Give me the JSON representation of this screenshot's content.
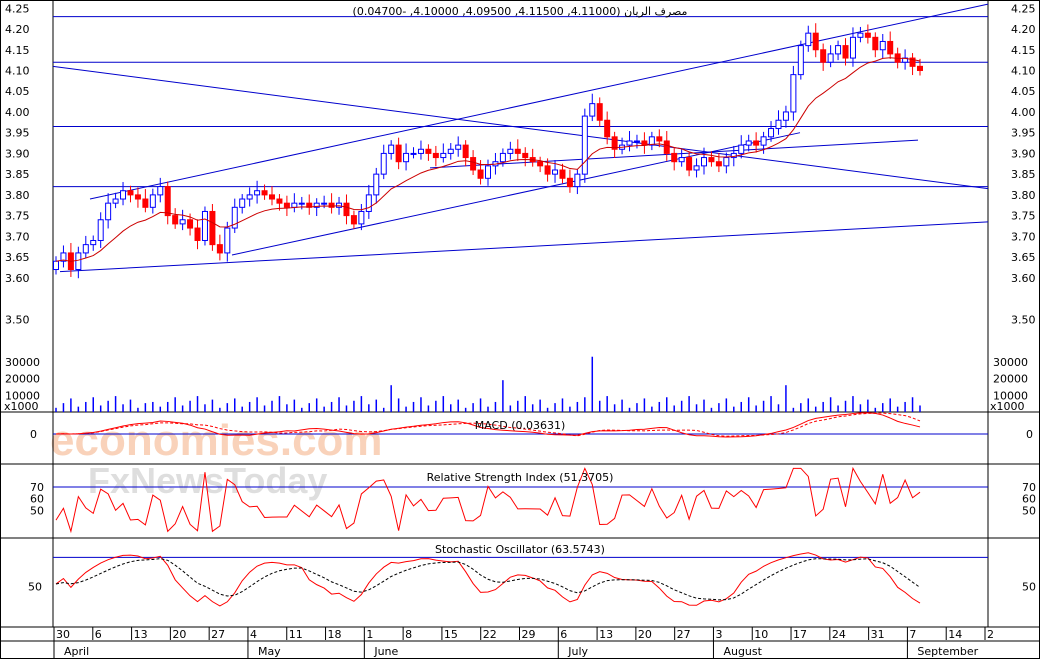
{
  "colors": {
    "up": "#0000ff",
    "down": "#ff0000",
    "ma": "#cc0000",
    "trend": "#0000cc",
    "grid": "#000000",
    "watermark_orange": "#f5b48a",
    "watermark_gray": "#d0d0d0"
  },
  "header": {
    "title": "مصرف الريان (4.11000, 4.11500, 4.09500, 4.10000, -0.04700)"
  },
  "watermark": {
    "line1": "economies.com",
    "line2": "FxNewsToday"
  },
  "panels": {
    "volume_unit": "x1000",
    "macd_title": "MACD (0.03631)",
    "rsi_title": "Relative Strength Index (51.3705)",
    "stoch_title": "Stochastic Oscillator (63.5743)"
  },
  "chart_data": [
    {
      "type": "candlestick",
      "name": "price",
      "ylim": [
        3.45,
        4.27
      ],
      "y_ticks": [
        "4.25",
        "4.20",
        "4.15",
        "4.10",
        "4.05",
        "4.00",
        "3.95",
        "3.90",
        "3.85",
        "3.80",
        "3.75",
        "3.70",
        "3.65",
        "3.60",
        "3.50"
      ],
      "y_tick_values": [
        4.25,
        4.2,
        4.15,
        4.1,
        4.05,
        4.0,
        3.95,
        3.9,
        3.85,
        3.8,
        3.75,
        3.7,
        3.65,
        3.6,
        3.5
      ],
      "x_day_labels": [
        "30",
        "6",
        "13",
        "20",
        "27",
        "4",
        "11",
        "18",
        "1",
        "8",
        "15",
        "22",
        "29",
        "6",
        "13",
        "20",
        "27",
        "3",
        "10",
        "17",
        "24",
        "31",
        "7",
        "14",
        "2"
      ],
      "x_month_labels": [
        "April",
        "May",
        "June",
        "July",
        "August",
        "September"
      ],
      "closes": [
        3.64,
        3.66,
        3.62,
        3.66,
        3.68,
        3.69,
        3.74,
        3.78,
        3.79,
        3.81,
        3.8,
        3.79,
        3.77,
        3.8,
        3.82,
        3.75,
        3.73,
        3.74,
        3.72,
        3.69,
        3.76,
        3.68,
        3.66,
        3.72,
        3.77,
        3.79,
        3.8,
        3.81,
        3.8,
        3.79,
        3.78,
        3.77,
        3.78,
        3.78,
        3.77,
        3.78,
        3.78,
        3.77,
        3.78,
        3.75,
        3.73,
        3.76,
        3.8,
        3.85,
        3.9,
        3.92,
        3.88,
        3.9,
        3.9,
        3.91,
        3.9,
        3.89,
        3.9,
        3.91,
        3.92,
        3.89,
        3.86,
        3.84,
        3.87,
        3.88,
        3.9,
        3.91,
        3.9,
        3.89,
        3.88,
        3.87,
        3.85,
        3.86,
        3.84,
        3.82,
        3.85,
        3.99,
        4.02,
        3.98,
        3.94,
        3.91,
        3.92,
        3.93,
        3.93,
        3.92,
        3.94,
        3.93,
        3.9,
        3.88,
        3.89,
        3.86,
        3.87,
        3.89,
        3.88,
        3.87,
        3.89,
        3.9,
        3.92,
        3.93,
        3.92,
        3.94,
        3.96,
        3.98,
        4.0,
        4.09,
        4.16,
        4.19,
        4.15,
        4.12,
        4.14,
        4.16,
        4.13,
        4.18,
        4.19,
        4.18,
        4.15,
        4.17,
        4.14,
        4.12,
        4.13,
        4.11,
        4.1
      ],
      "volume_ylim": [
        0,
        40000
      ],
      "volume_ticks": [
        "30000",
        "20000",
        "10000"
      ],
      "volume_tick_values": [
        30000,
        20000,
        10000
      ]
    },
    {
      "type": "line",
      "name": "rsi",
      "ylim": [
        28,
        88
      ],
      "y_ticks": [
        "70",
        "60",
        "50"
      ],
      "y_tick_values": [
        70,
        60,
        50
      ],
      "ref_line": 70,
      "last": 51.3705
    },
    {
      "type": "line",
      "name": "stochastic",
      "ylim": [
        10,
        98
      ],
      "y_ticks": [
        "50"
      ],
      "y_tick_values": [
        50
      ],
      "ref_line": 80,
      "last": 63.5743
    },
    {
      "type": "line",
      "name": "macd",
      "y_ticks": [
        "0"
      ],
      "y_tick_values": [
        0
      ],
      "last": 0.03631
    }
  ]
}
